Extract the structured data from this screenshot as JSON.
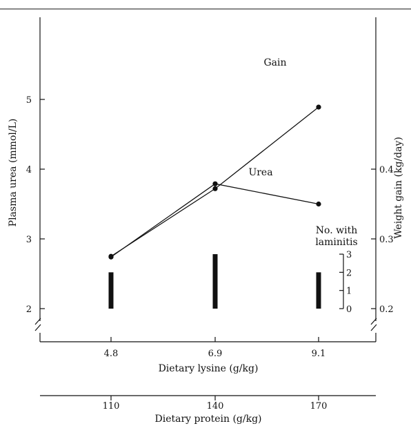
{
  "chart_data": {
    "type": "line",
    "x": {
      "title": "Dietary lysine (g/kg)",
      "values": [
        4.8,
        6.9,
        9.1
      ],
      "tick_labels": [
        "4.8",
        "6.9",
        "9.1"
      ]
    },
    "x_secondary": {
      "title": "Dietary protein (g/kg)",
      "values": [
        110,
        140,
        170
      ],
      "tick_labels": [
        "110",
        "140",
        "170"
      ]
    },
    "y_left": {
      "title": "Plasma urea (mmol/L)",
      "ticks": [
        2,
        3,
        4,
        5
      ],
      "tick_labels": [
        "2",
        "3",
        "4",
        "5"
      ],
      "ylim": [
        2,
        6
      ],
      "axis_break": true
    },
    "y_right": {
      "title": "Weight gain (kg/day)",
      "ticks": [
        0.2,
        0.3,
        0.4
      ],
      "tick_labels": [
        "0.2",
        "0.3",
        "0.4"
      ],
      "ylim": [
        0.2,
        0.4
      ],
      "axis_break": true
    },
    "series": [
      {
        "name": "Gain",
        "axis": "right",
        "values": [
          0.274,
          0.379,
          0.35
        ]
      },
      {
        "name": "Urea",
        "axis": "left",
        "values": [
          2.75,
          3.72,
          4.89
        ]
      }
    ],
    "laminitis": {
      "title_lines": [
        "No. with",
        "laminitis"
      ],
      "axis_ticks": [
        0,
        1,
        2,
        3
      ],
      "axis_tick_labels": [
        "0",
        "1",
        "2",
        "3"
      ],
      "values": [
        2,
        3,
        2
      ]
    },
    "grid": false,
    "legend": "none"
  }
}
